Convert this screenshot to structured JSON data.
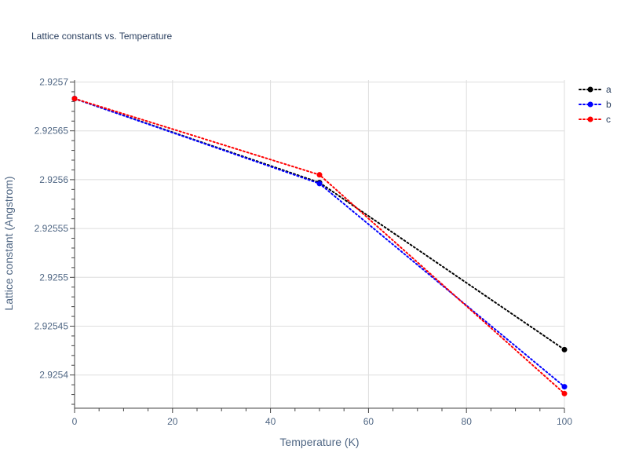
{
  "chart_data": {
    "type": "line",
    "title": "Lattice constants vs. Temperature",
    "xlabel": "Temperature (K)",
    "ylabel": "Lattice constant (Angstrom)",
    "x": [
      0,
      50,
      100
    ],
    "xlim": [
      0,
      100
    ],
    "ylim": [
      2.925366,
      2.925702
    ],
    "x_ticks": [
      0,
      20,
      40,
      60,
      80,
      100
    ],
    "y_ticks": [
      2.9254,
      2.92545,
      2.9255,
      2.92555,
      2.9256,
      2.92565,
      2.9257
    ],
    "x_tick_labels": [
      "0",
      "20",
      "40",
      "60",
      "80",
      "100"
    ],
    "y_tick_labels": [
      "2.9254",
      "2.92545",
      "2.9255",
      "2.92555",
      "2.9256",
      "2.92565",
      "2.9257"
    ],
    "grid": true,
    "legend_position": "top-right",
    "line_style": "dotted",
    "series": [
      {
        "name": "a",
        "color": "#000000",
        "values": [
          2.925683,
          2.925597,
          2.925426
        ]
      },
      {
        "name": "b",
        "color": "#0000ff",
        "values": [
          2.925683,
          2.925596,
          2.925388
        ]
      },
      {
        "name": "c",
        "color": "#ff0000",
        "values": [
          2.925683,
          2.925605,
          2.925381
        ]
      }
    ]
  }
}
